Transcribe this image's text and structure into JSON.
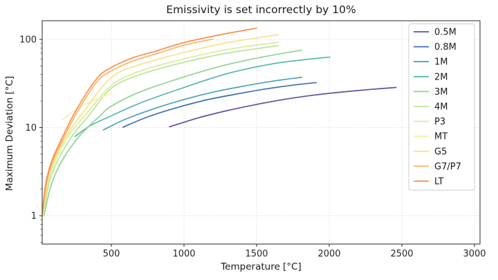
{
  "figure": {
    "background": "#ffffff"
  },
  "chart_data": {
    "type": "line",
    "title": "Emissivity is set incorrectly by 10%",
    "xlabel": "Temperature [°C]",
    "ylabel": "Maximum Deviation [°C]",
    "xscale": "linear",
    "yscale": "log",
    "xlim": [
      20,
      3080
    ],
    "ylim": [
      0.46,
      165
    ],
    "x_ticks": [
      500,
      1000,
      1500,
      2000,
      2500,
      3000
    ],
    "y_ticks": [
      1,
      10,
      100
    ],
    "y_minor_ticks": [
      0.5,
      0.6,
      0.7,
      0.8,
      0.9,
      2,
      3,
      4,
      5,
      6,
      7,
      8,
      9,
      20,
      30,
      40,
      50,
      60,
      70,
      80,
      90
    ],
    "grid": true,
    "grid_style": "dotted",
    "grid_color": "#c9c9c9",
    "axis_color": "#262626",
    "legend_position": "upper right",
    "legend_border_color": "#cccccc",
    "series": [
      {
        "name": "0.5M",
        "color": "#5e4fa2",
        "points": [
          [
            900,
            10.2
          ],
          [
            1100,
            12.9
          ],
          [
            1300,
            15.6
          ],
          [
            1500,
            18.3
          ],
          [
            1700,
            21.0
          ],
          [
            1900,
            23.4
          ],
          [
            2100,
            25.4
          ],
          [
            2300,
            27.2
          ],
          [
            2460,
            28.5
          ]
        ]
      },
      {
        "name": "0.8M",
        "color": "#3d6cb3",
        "points": [
          [
            580,
            10.1
          ],
          [
            750,
            13.2
          ],
          [
            950,
            16.8
          ],
          [
            1150,
            20.5
          ],
          [
            1350,
            23.8
          ],
          [
            1550,
            27.2
          ],
          [
            1730,
            30.0
          ],
          [
            1910,
            32.4
          ]
        ]
      },
      {
        "name": "1M",
        "color": "#48a0b8",
        "points": [
          [
            445,
            9.4
          ],
          [
            600,
            12.5
          ],
          [
            800,
            16.5
          ],
          [
            1000,
            20.8
          ],
          [
            1200,
            25.2
          ],
          [
            1400,
            29.3
          ],
          [
            1600,
            33.4
          ],
          [
            1810,
            37.2
          ]
        ]
      },
      {
        "name": "2M",
        "color": "#56bba5",
        "points": [
          [
            250,
            7.9
          ],
          [
            350,
            10.4
          ],
          [
            500,
            13.6
          ],
          [
            700,
            19.0
          ],
          [
            1000,
            28.5
          ],
          [
            1300,
            41.0
          ],
          [
            1600,
            52.5
          ],
          [
            1830,
            59.0
          ],
          [
            2005,
            63.0
          ]
        ]
      },
      {
        "name": "3M",
        "color": "#8fd48e",
        "points": [
          [
            36,
            1.0
          ],
          [
            85,
            2.2
          ],
          [
            160,
            4.2
          ],
          [
            280,
            8.0
          ],
          [
            420,
            13.5
          ],
          [
            500,
            17.5
          ],
          [
            700,
            25.5
          ],
          [
            1000,
            37.5
          ],
          [
            1300,
            52.0
          ],
          [
            1560,
            64.0
          ],
          [
            1810,
            75.5
          ]
        ]
      },
      {
        "name": "4M",
        "color": "#bce495",
        "points": [
          [
            32,
            1.0
          ],
          [
            70,
            2.3
          ],
          [
            130,
            4.2
          ],
          [
            230,
            8.0
          ],
          [
            350,
            14.0
          ],
          [
            500,
            28.0
          ],
          [
            700,
            40.0
          ],
          [
            1000,
            55.0
          ],
          [
            1300,
            70.0
          ],
          [
            1650,
            85.0
          ]
        ]
      },
      {
        "name": "P3",
        "color": "#d7ee9d",
        "points": [
          [
            30,
            1.0
          ],
          [
            65,
            2.4
          ],
          [
            120,
            4.4
          ],
          [
            210,
            8.3
          ],
          [
            320,
            13.8
          ],
          [
            500,
            30.0
          ],
          [
            700,
            44.0
          ],
          [
            1000,
            60.0
          ],
          [
            1300,
            77.0
          ],
          [
            1650,
            93.0
          ]
        ]
      },
      {
        "name": "MT",
        "color": "#eef5a8",
        "points": [
          [
            165,
            12.3
          ],
          [
            230,
            15.0
          ],
          [
            300,
            17.8
          ],
          [
            400,
            21.0
          ],
          [
            495,
            24.3
          ]
        ]
      },
      {
        "name": "G5",
        "color": "#fbe18b",
        "points": [
          [
            28,
            1.0
          ],
          [
            60,
            2.4
          ],
          [
            110,
            4.4
          ],
          [
            200,
            8.5
          ],
          [
            300,
            14.5
          ],
          [
            500,
            37.0
          ],
          [
            700,
            52.0
          ],
          [
            1000,
            71.0
          ],
          [
            1300,
            92.0
          ],
          [
            1650,
            113.0
          ]
        ]
      },
      {
        "name": "G7/P7",
        "color": "#fdb163",
        "points": [
          [
            26,
            1.05
          ],
          [
            52,
            2.3
          ],
          [
            95,
            4.1
          ],
          [
            160,
            7.0
          ],
          [
            270,
            15.5
          ],
          [
            400,
            33.0
          ],
          [
            500,
            44.0
          ],
          [
            650,
            57.0
          ],
          [
            800,
            68.0
          ],
          [
            1000,
            86.0
          ],
          [
            1200,
            101.0
          ]
        ]
      },
      {
        "name": "LT",
        "color": "#f78e4e",
        "points": [
          [
            25,
            1.1
          ],
          [
            50,
            2.4
          ],
          [
            90,
            4.2
          ],
          [
            150,
            7.0
          ],
          [
            260,
            16.0
          ],
          [
            400,
            36.0
          ],
          [
            500,
            48.0
          ],
          [
            650,
            62.0
          ],
          [
            800,
            73.0
          ],
          [
            1000,
            92.0
          ],
          [
            1250,
            113.0
          ],
          [
            1500,
            134.0
          ]
        ]
      }
    ]
  }
}
